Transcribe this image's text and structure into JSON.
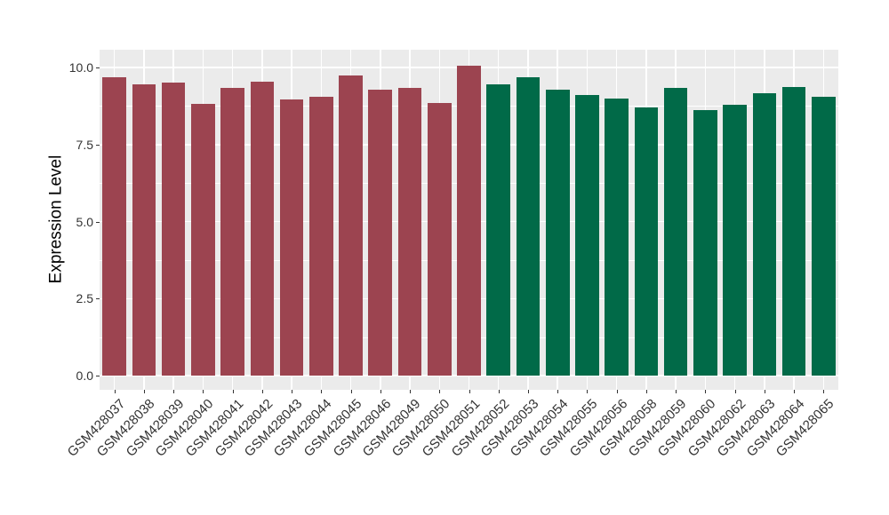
{
  "chart_data": {
    "type": "bar",
    "title": "",
    "xlabel": "",
    "ylabel": "Expression Level",
    "ylim": [
      -0.5,
      10.6
    ],
    "grid": "on",
    "legend": "none",
    "panel_background": "#EBEBEB",
    "gridline_color": "#FFFFFF",
    "tick_text_color": "#333333",
    "yticks": [
      {
        "label": "0.0",
        "value": 0
      },
      {
        "label": "2.5",
        "value": 2.5
      },
      {
        "label": "5.0",
        "value": 5
      },
      {
        "label": "7.5",
        "value": 7.5
      },
      {
        "label": "10.0",
        "value": 10
      }
    ],
    "minor_grid_values": [
      1.25,
      3.75,
      6.25,
      8.75
    ],
    "categories": [
      "GSM428037",
      "GSM428038",
      "GSM428039",
      "GSM428040",
      "GSM428041",
      "GSM428042",
      "GSM428043",
      "GSM428044",
      "GSM428045",
      "GSM428046",
      "GSM428049",
      "GSM428050",
      "GSM428051",
      "GSM428052",
      "GSM428053",
      "GSM428054",
      "GSM428055",
      "GSM428056",
      "GSM428058",
      "GSM428059",
      "GSM428060",
      "GSM428062",
      "GSM428063",
      "GSM428064",
      "GSM428065"
    ],
    "values": [
      9.68,
      9.46,
      9.5,
      8.81,
      9.33,
      9.54,
      8.95,
      9.04,
      9.74,
      9.28,
      9.34,
      8.85,
      10.05,
      9.46,
      9.69,
      9.28,
      9.12,
      8.99,
      8.69,
      9.33,
      8.62,
      8.8,
      9.15,
      9.36,
      9.06
    ],
    "bar_colors": [
      "#9C4450",
      "#9C4450",
      "#9C4450",
      "#9C4450",
      "#9C4450",
      "#9C4450",
      "#9C4450",
      "#9C4450",
      "#9C4450",
      "#9C4450",
      "#9C4450",
      "#9C4450",
      "#9C4450",
      "#016A48",
      "#016A48",
      "#016A48",
      "#016A48",
      "#016A48",
      "#016A48",
      "#016A48",
      "#016A48",
      "#016A48",
      "#016A48",
      "#016A48",
      "#016A48"
    ],
    "groups": [
      {
        "color": "#9C4450",
        "first_category": "GSM428037",
        "last_category": "GSM428051"
      },
      {
        "color": "#016A48",
        "first_category": "GSM428052",
        "last_category": "GSM428065"
      }
    ]
  }
}
